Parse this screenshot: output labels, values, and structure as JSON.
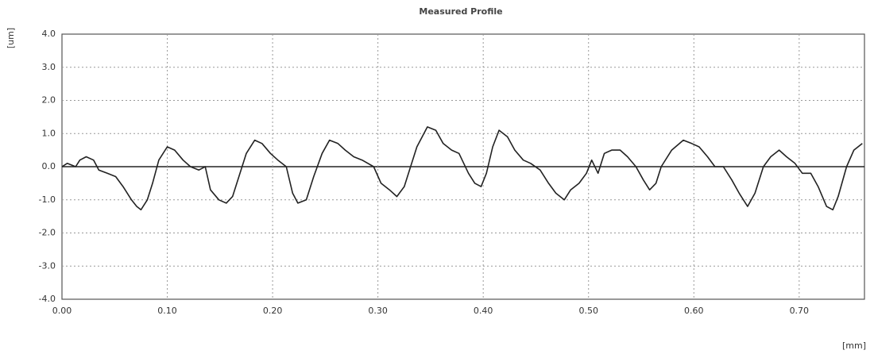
{
  "chart_data": {
    "type": "line",
    "title": "Measured Profile",
    "y_label": "[um]",
    "x_label": "[mm]",
    "color": "#222222",
    "grid": true,
    "xlim": [
      0,
      0.762
    ],
    "ylim": [
      -4,
      4
    ],
    "xticks": [
      {
        "value": 0,
        "label": "0.00"
      },
      {
        "value": 0.1,
        "label": "0.10"
      },
      {
        "value": 0.2,
        "label": "0.20"
      },
      {
        "value": 0.3,
        "label": "0.30"
      },
      {
        "value": 0.4,
        "label": "0.40"
      },
      {
        "value": 0.5,
        "label": "0.50"
      },
      {
        "value": 0.6,
        "label": "0.60"
      },
      {
        "value": 0.7,
        "label": "0.70"
      }
    ],
    "yticks": [
      {
        "value": 4,
        "label": "4.0"
      },
      {
        "value": 3,
        "label": "3.0"
      },
      {
        "value": 2,
        "label": "2.0"
      },
      {
        "value": 1,
        "label": "1.0"
      },
      {
        "value": 0,
        "label": "0.0"
      },
      {
        "value": -1,
        "label": "-1.0"
      },
      {
        "value": -2,
        "label": "-2.0"
      },
      {
        "value": -3,
        "label": "-3.0"
      },
      {
        "value": -4,
        "label": "-4.0"
      }
    ],
    "x": [
      0.0,
      0.005,
      0.013,
      0.017,
      0.023,
      0.03,
      0.035,
      0.043,
      0.051,
      0.058,
      0.066,
      0.071,
      0.075,
      0.081,
      0.086,
      0.092,
      0.1,
      0.107,
      0.115,
      0.122,
      0.13,
      0.136,
      0.141,
      0.149,
      0.156,
      0.162,
      0.168,
      0.175,
      0.183,
      0.19,
      0.198,
      0.205,
      0.213,
      0.219,
      0.224,
      0.232,
      0.239,
      0.247,
      0.254,
      0.262,
      0.269,
      0.277,
      0.285,
      0.296,
      0.303,
      0.311,
      0.318,
      0.325,
      0.33,
      0.337,
      0.347,
      0.355,
      0.362,
      0.37,
      0.377,
      0.386,
      0.392,
      0.398,
      0.403,
      0.409,
      0.415,
      0.423,
      0.43,
      0.438,
      0.445,
      0.454,
      0.462,
      0.469,
      0.477,
      0.483,
      0.491,
      0.498,
      0.503,
      0.509,
      0.515,
      0.522,
      0.53,
      0.537,
      0.545,
      0.552,
      0.558,
      0.564,
      0.569,
      0.579,
      0.59,
      0.598,
      0.605,
      0.613,
      0.62,
      0.628,
      0.636,
      0.643,
      0.651,
      0.658,
      0.666,
      0.673,
      0.681,
      0.688,
      0.696,
      0.703,
      0.711,
      0.718,
      0.726,
      0.732,
      0.737,
      0.745,
      0.752,
      0.76
    ],
    "values": [
      0.0,
      0.1,
      0.0,
      0.2,
      0.3,
      0.2,
      -0.1,
      -0.2,
      -0.3,
      -0.6,
      -1.0,
      -1.2,
      -1.3,
      -1.0,
      -0.5,
      0.2,
      0.6,
      0.5,
      0.2,
      0.0,
      -0.1,
      0.0,
      -0.7,
      -1.0,
      -1.1,
      -0.9,
      -0.3,
      0.4,
      0.8,
      0.7,
      0.4,
      0.2,
      0.0,
      -0.8,
      -1.1,
      -1.0,
      -0.3,
      0.4,
      0.8,
      0.7,
      0.5,
      0.3,
      0.2,
      0.0,
      -0.5,
      -0.7,
      -0.9,
      -0.6,
      -0.1,
      0.6,
      1.2,
      1.1,
      0.7,
      0.5,
      0.4,
      -0.2,
      -0.5,
      -0.6,
      -0.2,
      0.6,
      1.1,
      0.9,
      0.5,
      0.2,
      0.1,
      -0.1,
      -0.5,
      -0.8,
      -1.0,
      -0.7,
      -0.5,
      -0.2,
      0.2,
      -0.2,
      0.4,
      0.5,
      0.5,
      0.3,
      0.0,
      -0.4,
      -0.7,
      -0.5,
      0.0,
      0.5,
      0.8,
      0.7,
      0.6,
      0.3,
      0.0,
      0.0,
      -0.4,
      -0.8,
      -1.2,
      -0.8,
      0.0,
      0.3,
      0.5,
      0.3,
      0.1,
      -0.2,
      -0.2,
      -0.6,
      -1.2,
      -1.3,
      -0.9,
      0.0,
      0.5,
      0.7
    ]
  }
}
